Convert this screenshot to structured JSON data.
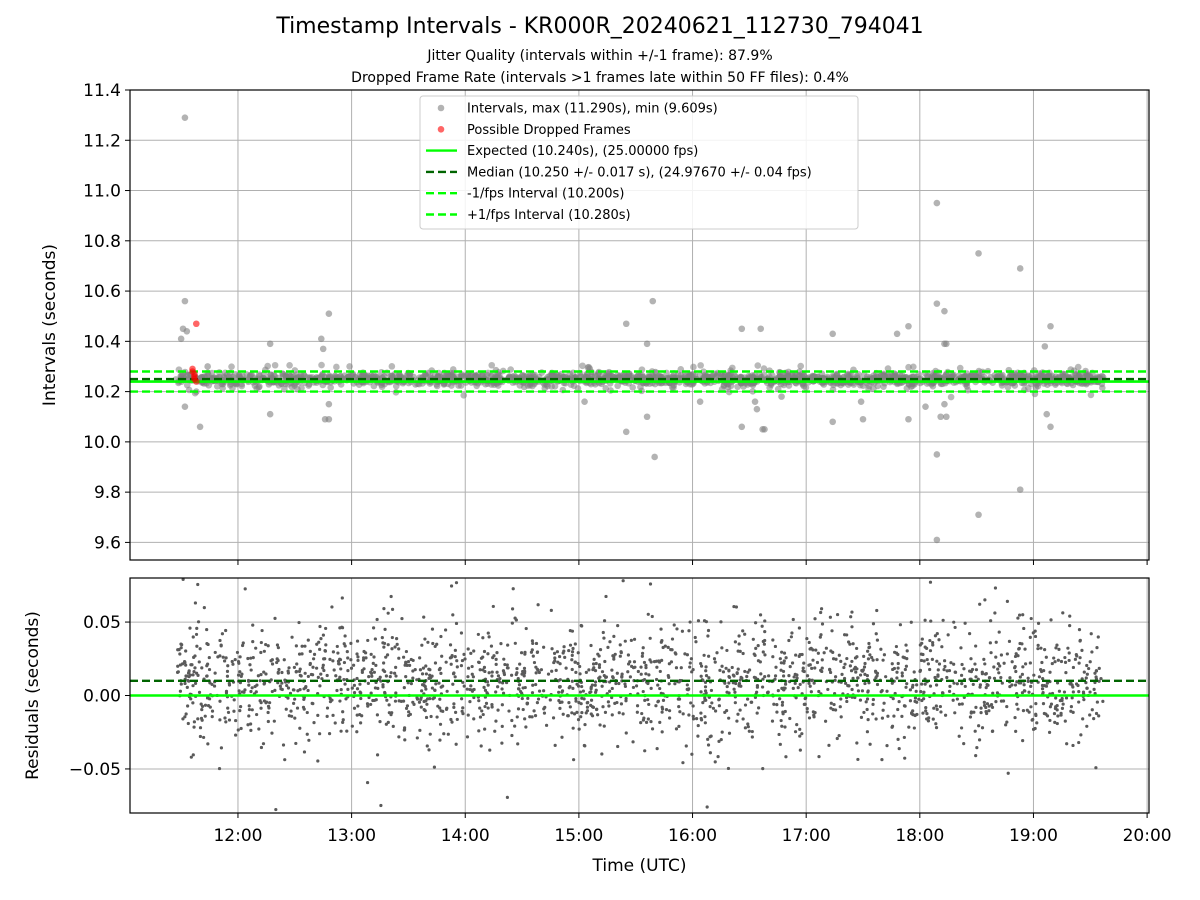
{
  "figure": {
    "title": "Timestamp Intervals - KR000R_20240621_112730_794041",
    "subtitle_1": "Jitter Quality (intervals within +/-1 frame): 87.9%",
    "subtitle_2": "Dropped Frame Rate (intervals >1 frames late within 50 FF files): 0.4%"
  },
  "colors": {
    "intervals": "#808080",
    "dropped": "#ff0000",
    "expected": "#00ff00",
    "median": "#006400",
    "fps_bounds": "#00ff00",
    "residuals": "#5a5a5a",
    "grid": "#b0b0b0"
  },
  "chart_data": [
    {
      "type": "scatter",
      "panel": "top",
      "xlabel": "",
      "ylabel": "Intervals (seconds)",
      "xlim": [
        "11:03",
        "20:01"
      ],
      "ylim": [
        9.53,
        11.4
      ],
      "yticks": [
        "9.6",
        "9.8",
        "10.0",
        "10.2",
        "10.4",
        "10.6",
        "10.8",
        "11.0",
        "11.2",
        "11.4"
      ],
      "grid": true,
      "legend_position": "upper center",
      "legend": [
        {
          "label": "Intervals, max (11.290s), min (9.609s)",
          "kind": "marker",
          "color": "#808080"
        },
        {
          "label": "Possible Dropped Frames",
          "kind": "marker",
          "color": "#ff0000"
        },
        {
          "label": "Expected (10.240s), (25.00000 fps)",
          "kind": "solid",
          "color": "#00ff00"
        },
        {
          "label": "Median (10.250 +/- 0.017 s), (24.97670 +/- 0.04 fps)",
          "kind": "dashed",
          "color": "#006400"
        },
        {
          "label": "-1/fps Interval (10.200s)",
          "kind": "dashed",
          "color": "#00ff00"
        },
        {
          "label": "+1/fps Interval (10.280s)",
          "kind": "dashed",
          "color": "#00ff00"
        }
      ],
      "reference_lines": {
        "expected": 10.24,
        "median": 10.25,
        "minus_one_fps": 10.2,
        "plus_one_fps": 10.28
      },
      "data_time_range": [
        "11:27",
        "19:37"
      ],
      "median_interval": 10.25,
      "series": [
        {
          "name": "Intervals, max (11.290s), min (9.609s)",
          "outliers": [
            {
              "x": "11:30",
              "y": 10.41
            },
            {
              "x": "11:31",
              "y": 10.45
            },
            {
              "x": "11:32",
              "y": 10.56
            },
            {
              "x": "11:32",
              "y": 11.29
            },
            {
              "x": "11:33",
              "y": 10.44
            },
            {
              "x": "11:32",
              "y": 10.14
            },
            {
              "x": "11:38",
              "y": 10.2
            },
            {
              "x": "11:40",
              "y": 10.06
            },
            {
              "x": "11:44",
              "y": 10.3
            },
            {
              "x": "12:17",
              "y": 10.39
            },
            {
              "x": "12:17",
              "y": 10.11
            },
            {
              "x": "12:44",
              "y": 10.41
            },
            {
              "x": "12:45",
              "y": 10.37
            },
            {
              "x": "12:46",
              "y": 10.09
            },
            {
              "x": "12:48",
              "y": 10.51
            },
            {
              "x": "12:48",
              "y": 10.15
            },
            {
              "x": "12:48",
              "y": 10.09
            },
            {
              "x": "15:03",
              "y": 10.16
            },
            {
              "x": "15:25",
              "y": 10.47
            },
            {
              "x": "15:25",
              "y": 10.04
            },
            {
              "x": "15:36",
              "y": 10.39
            },
            {
              "x": "15:36",
              "y": 10.1
            },
            {
              "x": "15:39",
              "y": 10.56
            },
            {
              "x": "15:40",
              "y": 9.94
            },
            {
              "x": "16:04",
              "y": 10.16
            },
            {
              "x": "16:26",
              "y": 10.45
            },
            {
              "x": "16:26",
              "y": 10.06
            },
            {
              "x": "16:33",
              "y": 10.16
            },
            {
              "x": "16:34",
              "y": 10.13
            },
            {
              "x": "16:36",
              "y": 10.45
            },
            {
              "x": "16:37",
              "y": 10.05
            },
            {
              "x": "16:38",
              "y": 10.05
            },
            {
              "x": "16:47",
              "y": 10.18
            },
            {
              "x": "17:14",
              "y": 10.43
            },
            {
              "x": "17:14",
              "y": 10.08
            },
            {
              "x": "17:29",
              "y": 10.16
            },
            {
              "x": "17:30",
              "y": 10.09
            },
            {
              "x": "17:48",
              "y": 10.43
            },
            {
              "x": "17:54",
              "y": 10.46
            },
            {
              "x": "17:54",
              "y": 10.09
            },
            {
              "x": "18:03",
              "y": 10.14
            },
            {
              "x": "18:09",
              "y": 9.61
            },
            {
              "x": "18:09",
              "y": 10.95
            },
            {
              "x": "18:09",
              "y": 10.55
            },
            {
              "x": "18:09",
              "y": 9.95
            },
            {
              "x": "18:11",
              "y": 10.1
            },
            {
              "x": "18:13",
              "y": 10.52
            },
            {
              "x": "18:13",
              "y": 10.39
            },
            {
              "x": "18:14",
              "y": 10.1
            },
            {
              "x": "18:14",
              "y": 10.39
            },
            {
              "x": "18:13",
              "y": 10.15
            },
            {
              "x": "18:31",
              "y": 10.75
            },
            {
              "x": "18:31",
              "y": 9.71
            },
            {
              "x": "18:53",
              "y": 10.69
            },
            {
              "x": "18:53",
              "y": 9.81
            },
            {
              "x": "19:06",
              "y": 10.38
            },
            {
              "x": "19:07",
              "y": 10.11
            },
            {
              "x": "19:09",
              "y": 10.46
            },
            {
              "x": "19:09",
              "y": 10.06
            }
          ]
        },
        {
          "name": "Possible Dropped Frames",
          "points": [
            {
              "x": "11:36",
              "y": 10.29
            },
            {
              "x": "11:36",
              "y": 10.28
            },
            {
              "x": "11:37",
              "y": 10.27
            },
            {
              "x": "11:37",
              "y": 10.26
            },
            {
              "x": "11:37",
              "y": 10.25
            },
            {
              "x": "11:38",
              "y": 10.24
            },
            {
              "x": "11:38",
              "y": 10.47
            }
          ]
        }
      ]
    },
    {
      "type": "scatter",
      "panel": "bottom",
      "xlabel": "Time (UTC)",
      "ylabel": "Residuals (seconds)",
      "xlim": [
        "11:03",
        "20:01"
      ],
      "ylim": [
        -0.08,
        0.08
      ],
      "xticks": [
        "12:00",
        "13:00",
        "14:00",
        "15:00",
        "16:00",
        "17:00",
        "18:00",
        "19:00",
        "20:00"
      ],
      "yticks": [
        "−0.05",
        "0.00",
        "0.05"
      ],
      "grid": true,
      "reference_lines": {
        "expected_residual": 0.0,
        "median_residual": 0.01
      },
      "series": [
        {
          "name": "",
          "data_time_range": [
            "11:28",
            "19:37"
          ],
          "center": 0.01,
          "spread": 0.02
        }
      ]
    }
  ]
}
